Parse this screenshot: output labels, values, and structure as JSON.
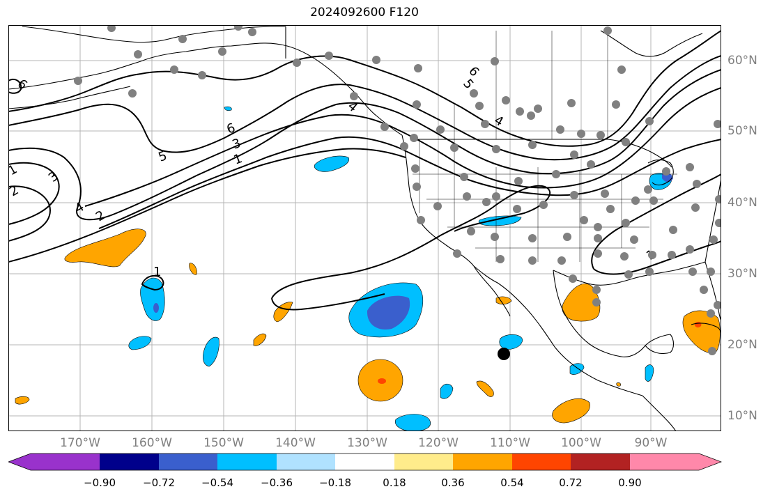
{
  "title": "2024092600 F120",
  "lat_labels": [
    "60°N",
    "50°N",
    "40°N",
    "30°N",
    "20°N",
    "10°N"
  ],
  "lon_labels": [
    "170°W",
    "160°W",
    "150°W",
    "140°W",
    "130°W",
    "120°W",
    "110°W",
    "100°W",
    "90°W"
  ],
  "contour_labels": [
    "6",
    "5",
    "4",
    "3",
    "2",
    "1"
  ],
  "colorbar": {
    "ticks": [
      "−0.90",
      "−0.72",
      "−0.54",
      "−0.36",
      "−0.18",
      "0.18",
      "0.36",
      "0.54",
      "0.72",
      "0.90"
    ],
    "colors": [
      "#9932cc",
      "#00008b",
      "#3a5fcd",
      "#00bfff",
      "#b0e2ff",
      "#ffffff",
      "#ffec8b",
      "#ffa500",
      "#ff4500",
      "#b22222",
      "#ff88aa"
    ]
  },
  "colors": {
    "land_line": "#000000",
    "contour": "#000000",
    "grid": "#b0b0b0",
    "station_dot": "#808080",
    "marker": "#000000"
  }
}
